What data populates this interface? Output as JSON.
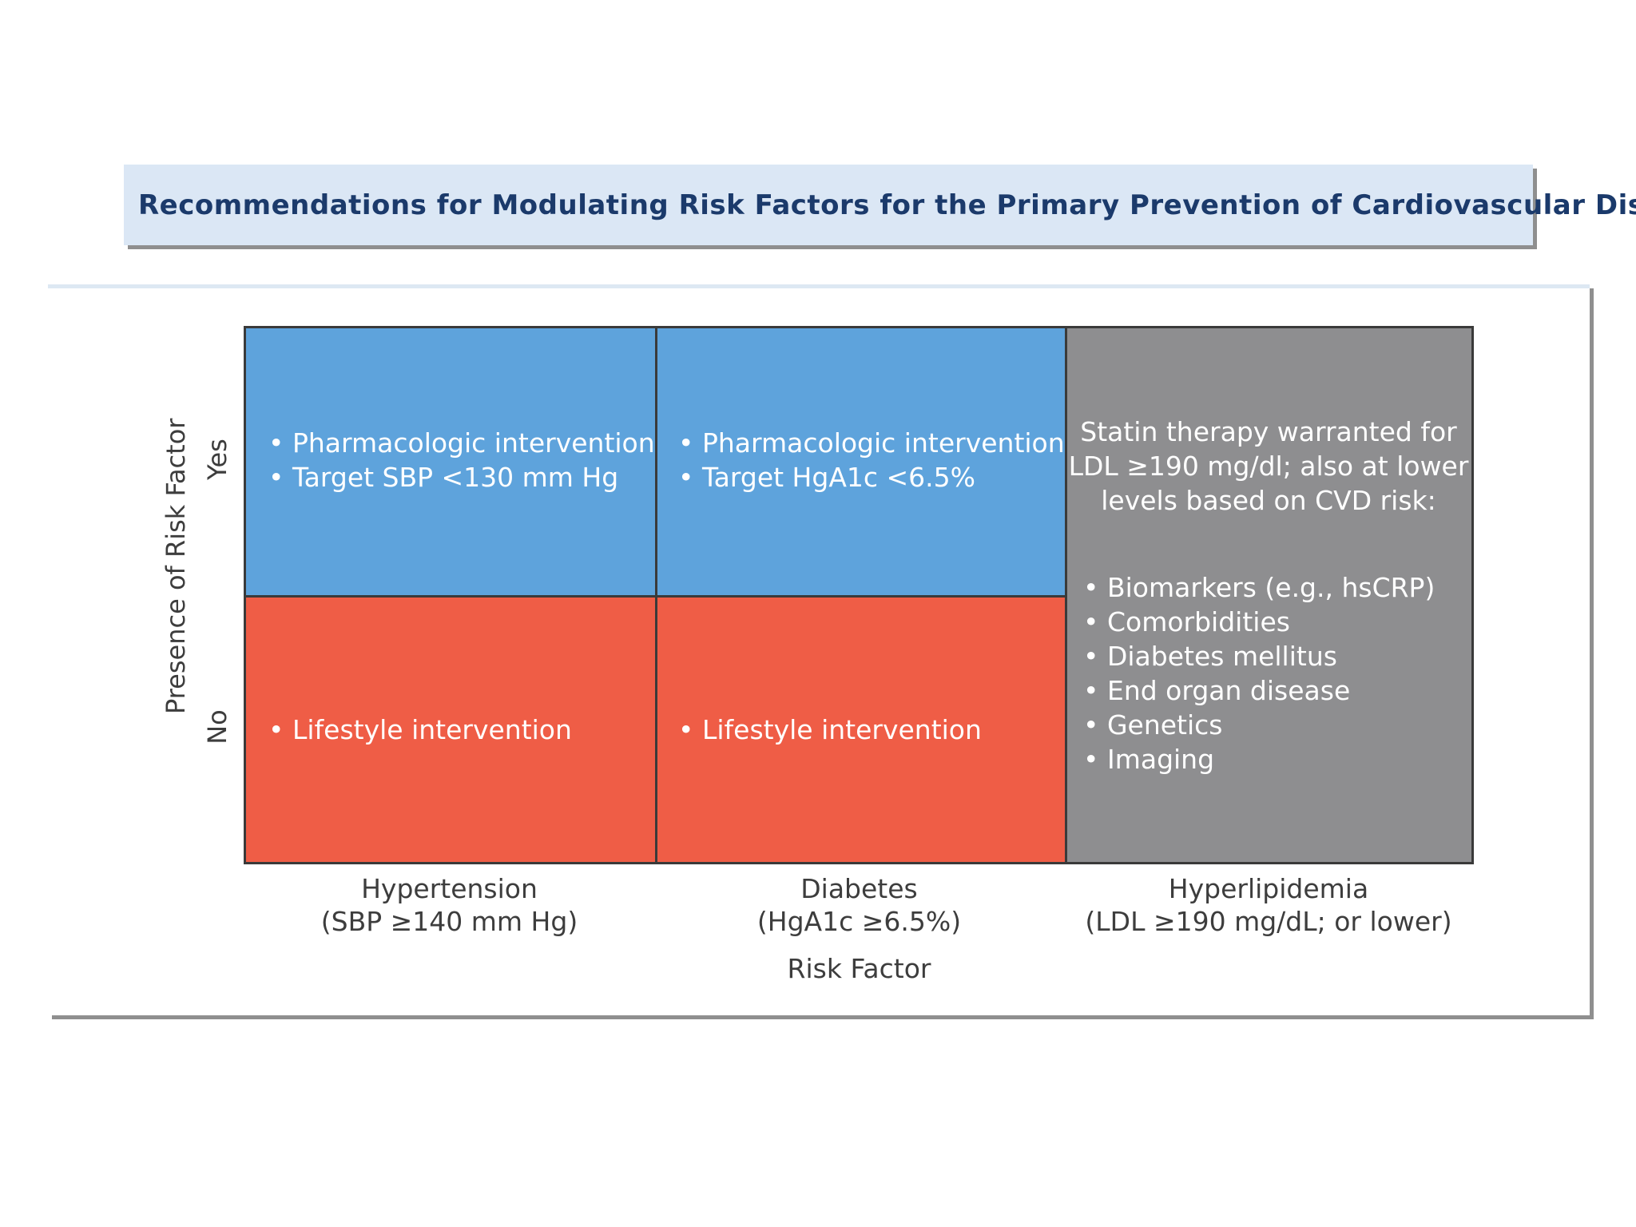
{
  "title": "Recommendations for Modulating Risk Factors for the Primary Prevention of Cardiovascular Disease",
  "y_axis": {
    "label": "Presence of Risk Factor",
    "yes": "Yes",
    "no": "No"
  },
  "x_axis": {
    "label": "Risk Factor",
    "columns": [
      "Hypertension\n(SBP ≥140 mm Hg)",
      "Diabetes\n(HgA1c ≥6.5%)",
      "Hyperlipidemia\n(LDL ≥190 mg/dL; or lower)"
    ]
  },
  "cells": {
    "hypertension_yes": [
      "Pharmacologic intervention",
      "Target SBP <130 mm Hg"
    ],
    "diabetes_yes": [
      "Pharmacologic intervention",
      "Target HgA1c <6.5%"
    ],
    "hypertension_no": [
      "Lifestyle intervention"
    ],
    "diabetes_no": [
      "Lifestyle intervention"
    ],
    "hyperlipidemia": {
      "intro": "Statin therapy warranted for\nLDL ≥190 mg/dl; also at lower\nlevels based on CVD risk:",
      "items": [
        "Biomarkers (e.g., hsCRP)",
        "Comorbidities",
        "Diabetes mellitus",
        "End organ disease",
        "Genetics",
        "Imaging"
      ]
    }
  },
  "colors": {
    "yes": "#5ea3dc",
    "no": "#ef5d46",
    "hyperlipidemia": "#8e8e90",
    "title_bg": "#dbe7f5",
    "title_text": "#1b3a6b"
  }
}
